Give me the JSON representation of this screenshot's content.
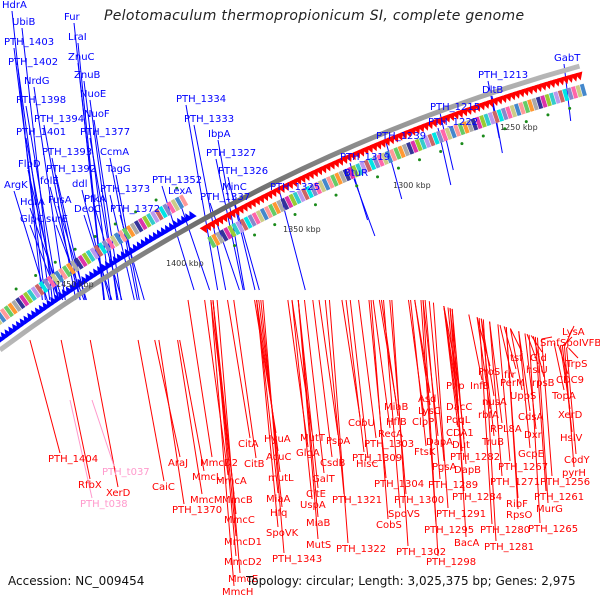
{
  "title": "Pelotomaculum thermopropionicum SI, complete genome",
  "footer": {
    "accession": "Accession: NC_009454",
    "summary": "Topology: circular; Length: 3,025,375 bp; Genes: 2,975"
  },
  "colors": {
    "forward_strand": "#0000ff",
    "reverse_strand": "#ff0000",
    "rna": "#ff99cc",
    "tick": "#1a8a1a",
    "backbone": "#888888"
  },
  "scale_labels": [
    "1250 kbp",
    "1300 kbp",
    "1350 kbp",
    "1400 kbp",
    "1450 kbp"
  ],
  "forward_labels": [
    "HdrA",
    "UbiB",
    "PTH_1403",
    "PTH_1402",
    "NrdG",
    "PTH_1398",
    "PTH_1394",
    "PTH_1401",
    "PTH_1393",
    "FlpD",
    "PTH_1392",
    "folE",
    "ArgK",
    "HdrA",
    "GlpC",
    "surE",
    "FusA",
    "ddl",
    "DeoC",
    "PfkA",
    "Fur",
    "LraI",
    "ZnuC",
    "ZnuB",
    "NuoE",
    "NuoF",
    "PTH_1377",
    "CcmA",
    "TagG",
    "PTH_1373",
    "PTH_1372",
    "PTH_1352",
    "LexA",
    "PTH_1334",
    "PTH_1333",
    "IbpA",
    "PTH_1327",
    "PTH_1326",
    "MinC",
    "PTH_1337",
    "PTH_1325",
    "BtuR",
    "PTH_1319",
    "PTH_1239",
    "PTH_1222",
    "PTH_1215",
    "DltB",
    "PTH_1213",
    "GabT"
  ],
  "reverse_labels": [
    "PTH_1404",
    "RfbX",
    "XerD",
    "CaiC",
    "AraJ",
    "MmcD2",
    "MmcL",
    "MmcA",
    "MmcM",
    "PTH_1370",
    "MmcB",
    "MmcC",
    "MmcD1",
    "MmcD2",
    "MmcE",
    "MmcH",
    "CitA",
    "CitB",
    "HyuA",
    "AcuC",
    "mutL",
    "MiaA",
    "Hfq",
    "SpoVK",
    "PTH_1343",
    "MutT",
    "GlgA",
    "GalT",
    "CitE",
    "UspA",
    "MiaB",
    "MutS",
    "PspA",
    "CsdB",
    "PTH_1321",
    "PTH_1322",
    "CobU",
    "HisC",
    "PTH_1309",
    "PTH_1303",
    "RecA",
    "HflB",
    "MiaB",
    "PTH_1304",
    "CobS",
    "SpoVS",
    "PTH_1300",
    "PTH_1302",
    "Asd",
    "LysC",
    "ClpP",
    "DapA",
    "FtsK",
    "PgsA",
    "PTH_1289",
    "PTH_1291",
    "PTH_1295",
    "PTH_1298",
    "Pnp",
    "InfB",
    "DacC",
    "PqqL",
    "CDA1",
    "Dut",
    "PTH_1282",
    "DapB",
    "PTH_1284",
    "BacA",
    "ProS",
    "frr",
    "nusA",
    "rbfA",
    "RPL8A",
    "TruB",
    "PTH_1280",
    "PTH_1281",
    "tsf",
    "Gid",
    "hslU",
    "PerM",
    "rpsB",
    "UppS",
    "CdsA",
    "Dxr",
    "GcpE",
    "PTH_1267",
    "PTH_1271",
    "RibF",
    "RpsO",
    "Smf",
    "SpoIVFB",
    "LysA",
    "TrpS",
    "CDC9",
    "TopA",
    "XerD",
    "HslV",
    "CodY",
    "pyrH",
    "PTH_1256",
    "PTH_1261",
    "MurG",
    "PTH_1265"
  ],
  "rna_labels": [
    "PTH_t037",
    "PTH_t038"
  ]
}
